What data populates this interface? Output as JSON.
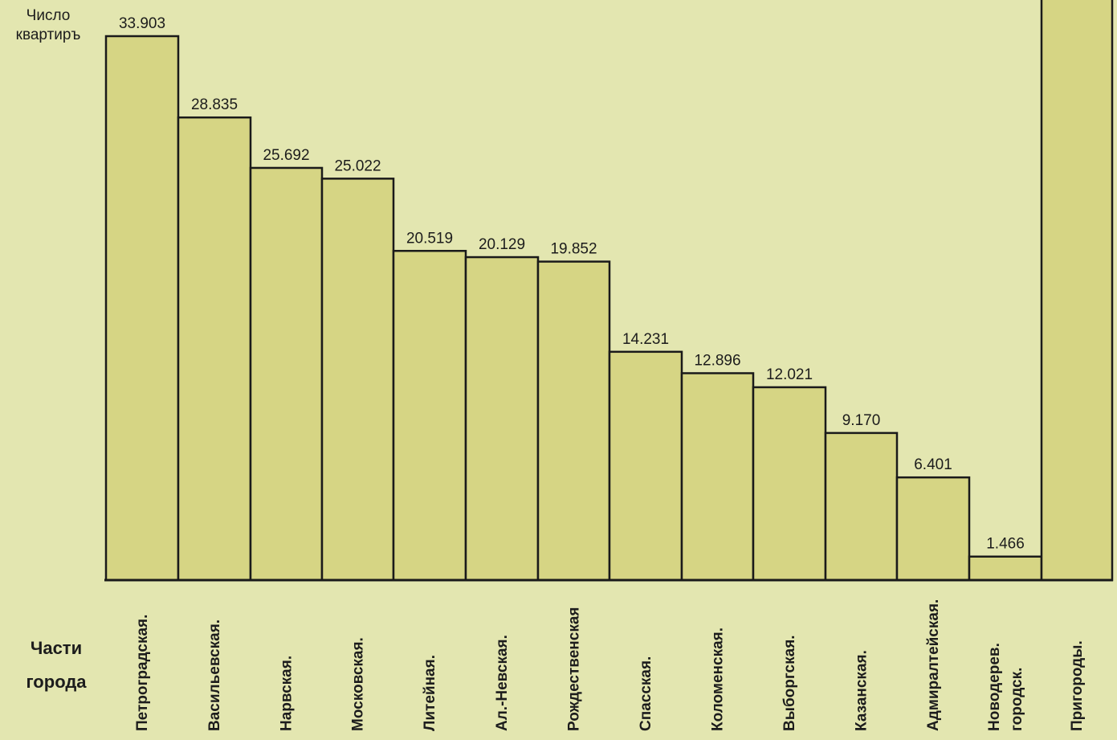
{
  "chart_data": {
    "type": "bar",
    "ylabel": [
      "Число",
      "квартиръ"
    ],
    "xlabel": [
      "Части",
      "города"
    ],
    "categories": [
      "Петроградская.",
      "Васильевская.",
      "Нарвская.",
      "Московская.",
      "Литейная.",
      "Ал.-Невская.",
      "Рождественская",
      "Спасская.",
      "Коломенская.",
      "Выборгская.",
      "Казанская.",
      "Адмиралтейская.",
      "Новодерев. городск.",
      "Пригороды."
    ],
    "values": [
      33903,
      28835,
      25692,
      25022,
      20519,
      20129,
      19852,
      14231,
      12896,
      12021,
      9170,
      6401,
      1466,
      null
    ],
    "value_labels": [
      "33.903",
      "28.835",
      "25.692",
      "25.022",
      "20.519",
      "20.129",
      "19.852",
      "14.231",
      "12.896",
      "12.021",
      "9.170",
      "6.401",
      "1.466",
      ""
    ],
    "notes": "The Пригороды. bar extends beyond the top of the visible area; its value is not shown.",
    "bar_color": "#d6d584",
    "background_color": "#e3e6b0",
    "edge_color": "#1a1a1a"
  }
}
